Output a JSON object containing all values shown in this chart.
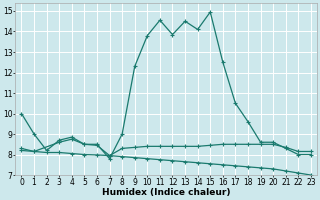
{
  "xlabel": "Humidex (Indice chaleur)",
  "ylabel": "",
  "bg_color": "#cde8ec",
  "grid_color": "#ffffff",
  "line_color": "#1a7a6e",
  "xlim": [
    -0.5,
    23.5
  ],
  "ylim": [
    7,
    15.4
  ],
  "xticks": [
    0,
    1,
    2,
    3,
    4,
    5,
    6,
    7,
    8,
    9,
    10,
    11,
    12,
    13,
    14,
    15,
    16,
    17,
    18,
    19,
    20,
    21,
    22,
    23
  ],
  "yticks": [
    7,
    8,
    9,
    10,
    11,
    12,
    13,
    14,
    15
  ],
  "line1_x": [
    0,
    1,
    2,
    3,
    4,
    5,
    6,
    7,
    8,
    9,
    10,
    11,
    12,
    13,
    14,
    15,
    16,
    17,
    18,
    19,
    20,
    21,
    22,
    23
  ],
  "line1_y": [
    10.0,
    9.0,
    8.2,
    8.7,
    8.85,
    8.5,
    8.5,
    7.8,
    9.0,
    12.3,
    13.8,
    14.55,
    13.85,
    14.5,
    14.1,
    14.95,
    12.5,
    10.5,
    9.6,
    8.6,
    8.6,
    8.3,
    8.0,
    8.0
  ],
  "line2_x": [
    0,
    1,
    3,
    4,
    5,
    6,
    7,
    8,
    9,
    10,
    11,
    12,
    13,
    14,
    15,
    16,
    17,
    18,
    19,
    20,
    21,
    22,
    23
  ],
  "line2_y": [
    8.3,
    8.15,
    8.6,
    8.75,
    8.5,
    8.45,
    7.95,
    8.3,
    8.35,
    8.4,
    8.4,
    8.4,
    8.4,
    8.4,
    8.45,
    8.5,
    8.5,
    8.5,
    8.5,
    8.5,
    8.35,
    8.15,
    8.15
  ],
  "line3_x": [
    0,
    1,
    2,
    3,
    4,
    5,
    6,
    7,
    8,
    9,
    10,
    11,
    12,
    13,
    14,
    15,
    16,
    17,
    18,
    19,
    20,
    21,
    22,
    23
  ],
  "line3_y": [
    8.2,
    8.15,
    8.1,
    8.1,
    8.05,
    8.0,
    7.98,
    7.95,
    7.9,
    7.85,
    7.8,
    7.75,
    7.7,
    7.65,
    7.6,
    7.55,
    7.5,
    7.45,
    7.4,
    7.35,
    7.3,
    7.2,
    7.1,
    7.0
  ],
  "marker": "+",
  "markersize": 3.5,
  "linewidth": 0.9,
  "tick_fontsize": 5.5,
  "xlabel_fontsize": 6.5
}
